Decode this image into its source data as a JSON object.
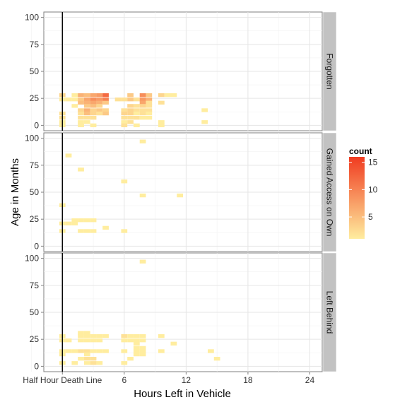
{
  "chart_data": {
    "type": "heatmap",
    "xlabel": "Hours Left in Vehicle",
    "ylabel": "Age in Months",
    "xlim": [
      -1.8,
      25.2
    ],
    "ylim": [
      -5,
      105
    ],
    "x_ticks": [
      {
        "value": 0,
        "label": "Half Hour Death Line"
      },
      {
        "value": 6,
        "label": "6"
      },
      {
        "value": 12,
        "label": "12"
      },
      {
        "value": 18,
        "label": "18"
      },
      {
        "value": 24,
        "label": "24"
      }
    ],
    "y_ticks": [
      0,
      25,
      50,
      75,
      100
    ],
    "vline_x": 0,
    "bin_width_x": 0.6,
    "bin_height_y": 3.5,
    "legend": {
      "title": "count",
      "range": [
        1,
        16
      ],
      "breaks": [
        5,
        10,
        15
      ],
      "low_color": "#FFED9F",
      "high_color": "#F03B20"
    },
    "panels": [
      {
        "label": "Forgotten",
        "cells": [
          [
            0,
            28,
            3
          ],
          [
            0,
            24,
            1
          ],
          [
            0,
            11,
            2
          ],
          [
            0,
            7,
            2
          ],
          [
            0,
            3,
            1
          ],
          [
            0,
            0,
            1
          ],
          [
            0.6,
            24,
            1
          ],
          [
            1.2,
            28,
            1
          ],
          [
            1.2,
            24,
            1
          ],
          [
            1.2,
            18,
            1
          ],
          [
            1.8,
            28,
            6
          ],
          [
            1.8,
            24,
            4
          ],
          [
            1.8,
            21,
            5
          ],
          [
            1.8,
            14,
            3
          ],
          [
            1.8,
            11,
            2
          ],
          [
            1.8,
            7,
            2
          ],
          [
            1.8,
            3,
            1
          ],
          [
            1.8,
            0,
            1
          ],
          [
            2.4,
            28,
            5
          ],
          [
            2.4,
            24,
            7
          ],
          [
            2.4,
            21,
            6
          ],
          [
            2.4,
            18,
            4
          ],
          [
            2.4,
            14,
            6
          ],
          [
            2.4,
            11,
            5
          ],
          [
            2.4,
            7,
            2
          ],
          [
            2.4,
            3,
            1
          ],
          [
            3.0,
            28,
            7
          ],
          [
            3.0,
            24,
            9
          ],
          [
            3.0,
            21,
            7
          ],
          [
            3.0,
            18,
            5
          ],
          [
            3.0,
            14,
            3
          ],
          [
            3.0,
            11,
            3
          ],
          [
            3.0,
            7,
            2
          ],
          [
            3.0,
            0,
            1
          ],
          [
            3.6,
            28,
            8
          ],
          [
            3.6,
            24,
            8
          ],
          [
            3.6,
            21,
            6
          ],
          [
            3.6,
            18,
            3
          ],
          [
            3.6,
            14,
            4
          ],
          [
            3.6,
            11,
            2
          ],
          [
            4.2,
            28,
            12
          ],
          [
            4.2,
            24,
            10
          ],
          [
            4.2,
            21,
            4
          ],
          [
            4.2,
            14,
            3
          ],
          [
            4.2,
            11,
            4
          ],
          [
            5.4,
            24,
            2
          ],
          [
            6.0,
            24,
            2
          ],
          [
            6.0,
            14,
            2
          ],
          [
            6.0,
            11,
            3
          ],
          [
            6.0,
            7,
            2
          ],
          [
            6.0,
            3,
            1
          ],
          [
            6.0,
            0,
            2
          ],
          [
            6.6,
            28,
            4
          ],
          [
            6.6,
            24,
            4
          ],
          [
            6.6,
            18,
            3
          ],
          [
            6.6,
            14,
            3
          ],
          [
            6.6,
            11,
            3
          ],
          [
            6.6,
            7,
            2
          ],
          [
            6.6,
            3,
            2
          ],
          [
            7.2,
            24,
            2
          ],
          [
            7.2,
            18,
            2
          ],
          [
            7.2,
            14,
            2
          ],
          [
            7.2,
            11,
            1
          ],
          [
            7.2,
            7,
            2
          ],
          [
            7.2,
            0,
            1
          ],
          [
            7.8,
            28,
            9
          ],
          [
            7.8,
            24,
            8
          ],
          [
            7.8,
            21,
            7
          ],
          [
            7.8,
            18,
            3
          ],
          [
            7.8,
            14,
            2
          ],
          [
            7.8,
            11,
            2
          ],
          [
            7.8,
            7,
            1
          ],
          [
            8.4,
            28,
            4
          ],
          [
            8.4,
            24,
            6
          ],
          [
            8.4,
            21,
            2
          ],
          [
            8.4,
            18,
            2
          ],
          [
            8.4,
            14,
            2
          ],
          [
            8.4,
            11,
            1
          ],
          [
            8.4,
            7,
            1
          ],
          [
            9.6,
            28,
            3
          ],
          [
            9.6,
            21,
            2
          ],
          [
            9.6,
            3,
            1
          ],
          [
            9.6,
            0,
            1
          ],
          [
            10.2,
            28,
            1
          ],
          [
            10.8,
            28,
            1
          ],
          [
            13.8,
            14,
            1
          ],
          [
            13.8,
            3,
            1
          ]
        ]
      },
      {
        "label": "Gained Access on Own",
        "cells": [
          [
            0,
            38,
            1
          ],
          [
            0,
            21,
            1
          ],
          [
            0,
            14,
            1
          ],
          [
            0.6,
            21,
            1
          ],
          [
            0.6,
            84,
            1
          ],
          [
            1.2,
            24,
            1
          ],
          [
            1.2,
            21,
            1
          ],
          [
            1.8,
            24,
            1
          ],
          [
            1.8,
            14,
            1
          ],
          [
            1.8,
            71,
            1
          ],
          [
            2.4,
            24,
            1
          ],
          [
            2.4,
            14,
            1
          ],
          [
            3.0,
            24,
            1
          ],
          [
            3.0,
            14,
            1
          ],
          [
            4.2,
            17,
            1
          ],
          [
            6.0,
            60,
            1
          ],
          [
            6.0,
            14,
            1
          ],
          [
            7.8,
            97,
            1
          ],
          [
            7.8,
            47,
            1
          ],
          [
            11.4,
            47,
            1
          ]
        ]
      },
      {
        "label": "Left Behind",
        "cells": [
          [
            0,
            28,
            1
          ],
          [
            0,
            24,
            1
          ],
          [
            0,
            14,
            1
          ],
          [
            0,
            11,
            1
          ],
          [
            0,
            3,
            1
          ],
          [
            0.6,
            24,
            1
          ],
          [
            0.6,
            14,
            1
          ],
          [
            1.2,
            14,
            1
          ],
          [
            1.2,
            3,
            1
          ],
          [
            1.8,
            31,
            1
          ],
          [
            1.8,
            28,
            1
          ],
          [
            1.8,
            24,
            1
          ],
          [
            1.8,
            14,
            2
          ],
          [
            1.8,
            7,
            1
          ],
          [
            2.4,
            31,
            1
          ],
          [
            2.4,
            28,
            1
          ],
          [
            2.4,
            24,
            1
          ],
          [
            2.4,
            14,
            2
          ],
          [
            2.4,
            11,
            1
          ],
          [
            2.4,
            7,
            2
          ],
          [
            2.4,
            3,
            1
          ],
          [
            3.0,
            28,
            1
          ],
          [
            3.0,
            24,
            1
          ],
          [
            3.0,
            14,
            1
          ],
          [
            3.0,
            7,
            2
          ],
          [
            3.0,
            3,
            2
          ],
          [
            3.6,
            28,
            1
          ],
          [
            3.6,
            24,
            1
          ],
          [
            3.6,
            14,
            1
          ],
          [
            3.6,
            3,
            1
          ],
          [
            4.2,
            28,
            1
          ],
          [
            4.2,
            14,
            1
          ],
          [
            6.0,
            28,
            2
          ],
          [
            6.0,
            24,
            1
          ],
          [
            6.0,
            14,
            1
          ],
          [
            6.0,
            3,
            1
          ],
          [
            6.6,
            28,
            1
          ],
          [
            6.6,
            24,
            1
          ],
          [
            6.6,
            7,
            1
          ],
          [
            7.2,
            28,
            1
          ],
          [
            7.2,
            24,
            1
          ],
          [
            7.2,
            21,
            1
          ],
          [
            7.2,
            17,
            1
          ],
          [
            7.2,
            14,
            1
          ],
          [
            7.2,
            11,
            1
          ],
          [
            7.8,
            97,
            1
          ],
          [
            7.8,
            28,
            1
          ],
          [
            7.8,
            24,
            1
          ],
          [
            7.8,
            17,
            1
          ],
          [
            7.8,
            14,
            1
          ],
          [
            7.8,
            11,
            1
          ],
          [
            9.6,
            28,
            1
          ],
          [
            9.6,
            14,
            1
          ],
          [
            10.8,
            21,
            1
          ],
          [
            14.4,
            14,
            1
          ],
          [
            15.0,
            7,
            1
          ]
        ]
      }
    ]
  }
}
